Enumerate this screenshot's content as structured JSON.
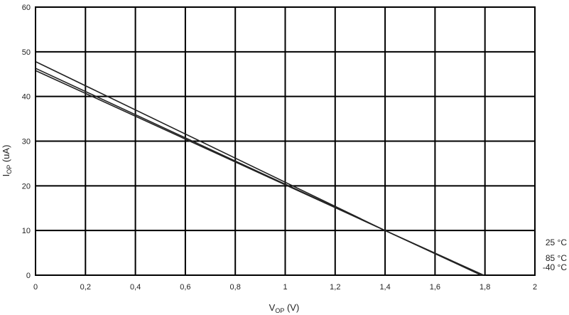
{
  "chart_data": {
    "type": "line",
    "title": "",
    "xlabel": {
      "main": "V",
      "sub": "OP",
      "suffix": " (V)"
    },
    "ylabel": {
      "main": "I",
      "sub": "OP",
      "suffix": " (uA)"
    },
    "xlim": [
      0,
      2
    ],
    "ylim": [
      0,
      60
    ],
    "xticks": [
      0,
      0.2,
      0.4,
      0.6,
      0.8,
      1,
      1.2,
      1.4,
      1.6,
      1.8,
      2
    ],
    "xtick_labels": [
      "0",
      "0,2",
      "0,4",
      "0,6",
      "0,8",
      "1",
      "1,2",
      "1,4",
      "1,6",
      "1,8",
      "2"
    ],
    "yticks": [
      0,
      10,
      20,
      30,
      40,
      50,
      60
    ],
    "ytick_labels": [
      "0",
      "10",
      "20",
      "30",
      "40",
      "50",
      "60"
    ],
    "grid": true,
    "legend_position": "right",
    "series": [
      {
        "name": "25 °C",
        "x": [
          0,
          1.4,
          1.795
        ],
        "y": [
          47.8,
          10,
          0
        ]
      },
      {
        "name": "85 °C",
        "x": [
          0,
          1.4,
          1.79
        ],
        "y": [
          46.3,
          10,
          0
        ]
      },
      {
        "name": "-40 °C",
        "x": [
          0,
          1.4,
          1.785
        ],
        "y": [
          45.8,
          10,
          0
        ]
      }
    ]
  }
}
